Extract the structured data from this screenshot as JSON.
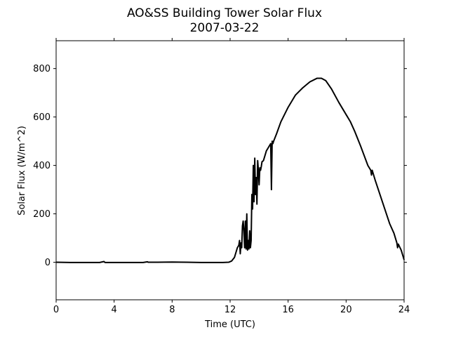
{
  "chart_data": {
    "type": "line",
    "title": "AO&SS Building Tower Solar Flux",
    "subtitle": "2007-03-22",
    "xlabel": "Time (UTC)",
    "ylabel": "Solar Flux (W/m^2)",
    "xlim": [
      0,
      24
    ],
    "ylim": [
      -155,
      915
    ],
    "xticks": [
      0,
      4,
      8,
      12,
      16,
      20,
      24
    ],
    "yticks": [
      0,
      200,
      400,
      600,
      800
    ],
    "xtick_labels": [
      "0",
      "4",
      "8",
      "12",
      "16",
      "20",
      "24"
    ],
    "ytick_labels": [
      "0",
      "200",
      "400",
      "600",
      "800"
    ],
    "grid": false,
    "series_color": "#000000",
    "series": [
      {
        "x": [
          0,
          1,
          2,
          3,
          3.3,
          3.35,
          3.4,
          4,
          5,
          6,
          6.3,
          6.35,
          6.4,
          7,
          8,
          9,
          10,
          11,
          11.5,
          11.9,
          12.1,
          12.3,
          12.5,
          12.6,
          12.65,
          12.7,
          12.75,
          12.8,
          12.85,
          12.9,
          12.95,
          13.0,
          13.05,
          13.1,
          13.15,
          13.2,
          13.25,
          13.3,
          13.35,
          13.4,
          13.45,
          13.5,
          13.55,
          13.6,
          13.65,
          13.7,
          13.75,
          13.8,
          13.85,
          13.9,
          13.95,
          14.0,
          14.05,
          14.1,
          14.15,
          14.2,
          14.3,
          14.4,
          14.5,
          14.6,
          14.7,
          14.8,
          14.85,
          14.9,
          14.95,
          15.0,
          15.2,
          15.5,
          16.0,
          16.5,
          17.0,
          17.5,
          18.0,
          18.3,
          18.6,
          19.0,
          19.5,
          20.0,
          20.3,
          20.6,
          21.0,
          21.5,
          21.7,
          21.75,
          21.8,
          22.0,
          22.5,
          23.0,
          23.3,
          23.5,
          23.55,
          23.6,
          23.8,
          23.95,
          24.0
        ],
        "y": [
          0,
          -1,
          -1,
          -1,
          3,
          0,
          -1,
          -1,
          -1,
          -1,
          2,
          0,
          0,
          0,
          1,
          0,
          -1,
          -1,
          -1,
          0,
          5,
          20,
          60,
          70,
          90,
          35,
          80,
          60,
          150,
          170,
          130,
          60,
          170,
          55,
          200,
          50,
          90,
          55,
          130,
          60,
          90,
          280,
          220,
          400,
          250,
          430,
          280,
          350,
          240,
          420,
          380,
          320,
          390,
          380,
          395,
          415,
          420,
          440,
          460,
          470,
          480,
          490,
          300,
          500,
          490,
          500,
          530,
          580,
          640,
          690,
          720,
          745,
          760,
          760,
          750,
          715,
          660,
          610,
          580,
          540,
          480,
          400,
          380,
          360,
          380,
          340,
          250,
          160,
          120,
          80,
          60,
          75,
          50,
          20,
          10
        ]
      }
    ]
  }
}
